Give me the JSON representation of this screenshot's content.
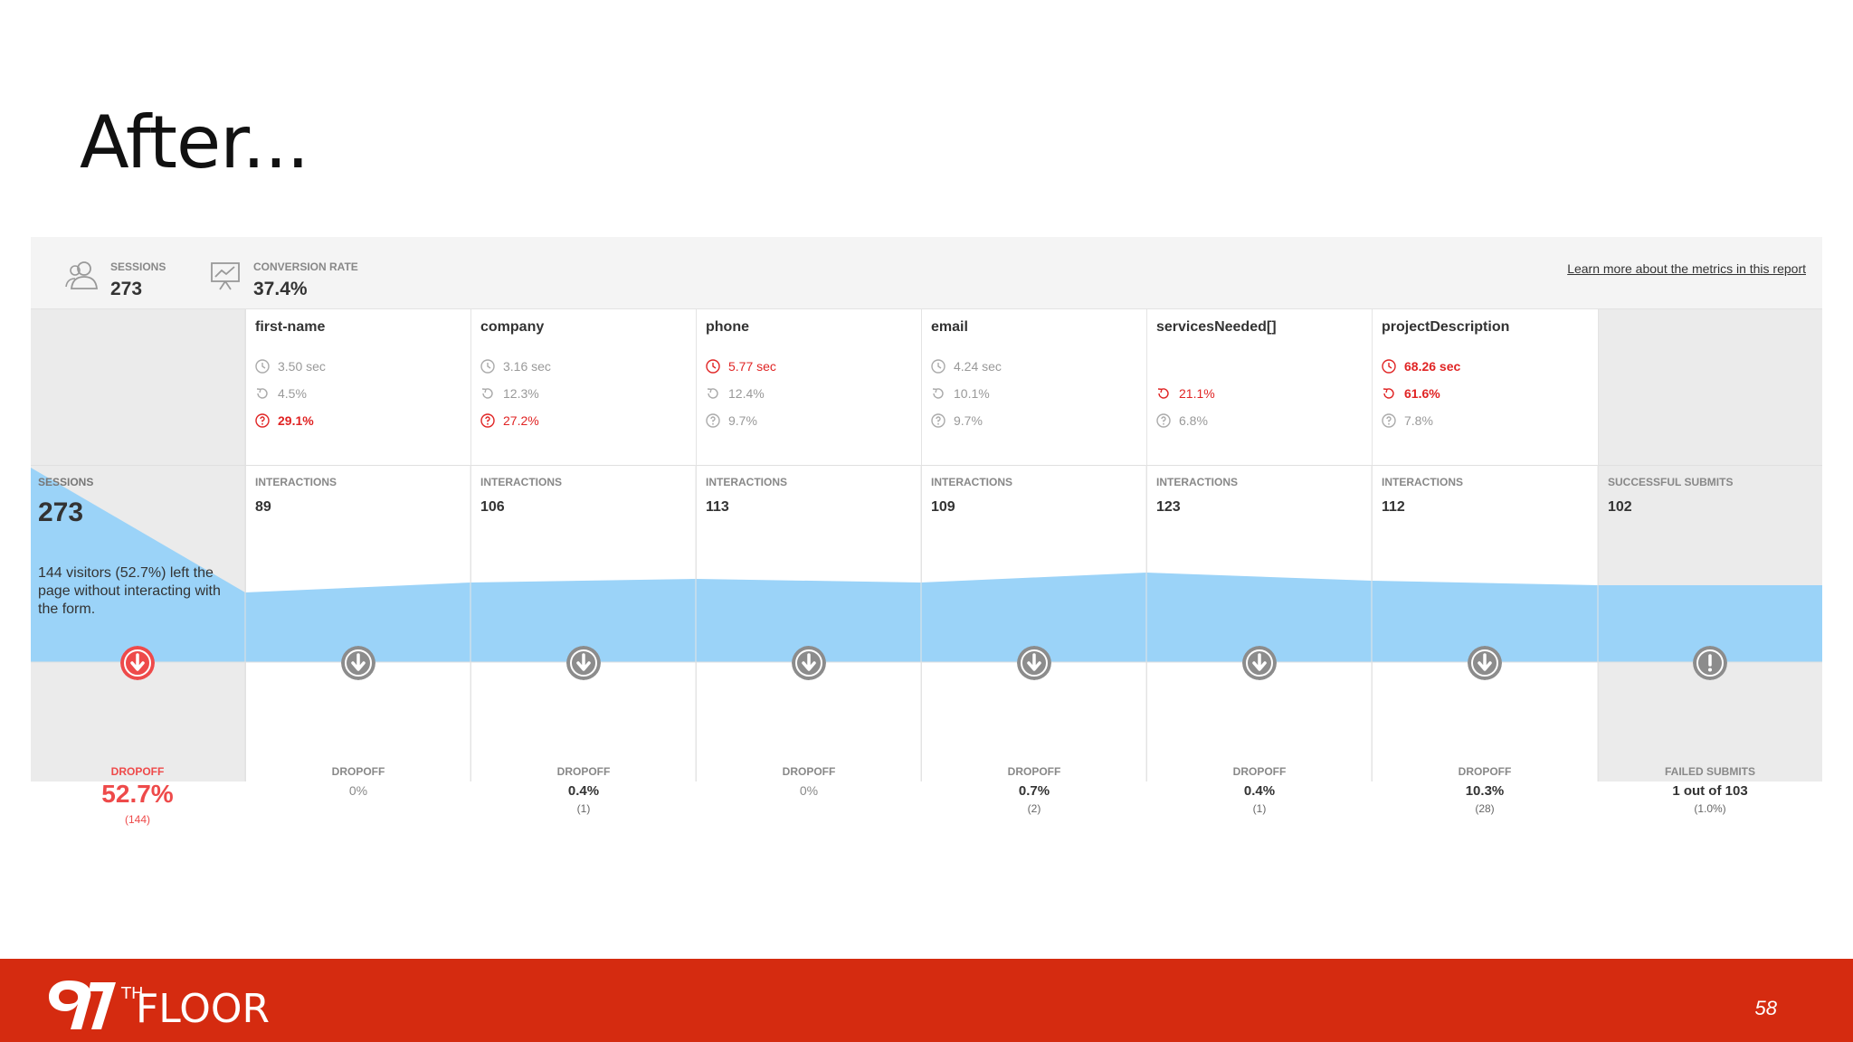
{
  "slide": {
    "title": "After...",
    "page_number": "58"
  },
  "topbar": {
    "sessions_label": "SESSIONS",
    "sessions_value": "273",
    "conversion_label": "CONVERSION RATE",
    "conversion_value": "37.4%",
    "learn_more": "Learn more about the metrics in this report"
  },
  "first_column": {
    "label": "SESSIONS",
    "value": "273",
    "note": "144 visitors (52.7%) left the page without interacting with the form.",
    "dropoff_label": "DROPOFF",
    "dropoff_value": "52.7%",
    "dropoff_count": "(144)"
  },
  "fields": [
    {
      "name": "first-name",
      "time": "3.50 sec",
      "refill": "4.5%",
      "blank": "29.1%",
      "interactions_label": "INTERACTIONS",
      "interactions": "89",
      "dropoff_label": "DROPOFF",
      "dropoff": "0%",
      "dropoff_count": ""
    },
    {
      "name": "company",
      "time": "3.16 sec",
      "refill": "12.3%",
      "blank": "27.2%",
      "interactions_label": "INTERACTIONS",
      "interactions": "106",
      "dropoff_label": "DROPOFF",
      "dropoff": "0.4%",
      "dropoff_count": "(1)"
    },
    {
      "name": "phone",
      "time": "5.77 sec",
      "refill": "12.4%",
      "blank": "9.7%",
      "interactions_label": "INTERACTIONS",
      "interactions": "113",
      "dropoff_label": "DROPOFF",
      "dropoff": "0%",
      "dropoff_count": ""
    },
    {
      "name": "email",
      "time": "4.24 sec",
      "refill": "10.1%",
      "blank": "9.7%",
      "interactions_label": "INTERACTIONS",
      "interactions": "109",
      "dropoff_label": "DROPOFF",
      "dropoff": "0.7%",
      "dropoff_count": "(2)"
    },
    {
      "name": "servicesNeeded[]",
      "time": "",
      "refill": "21.1%",
      "blank": "6.8%",
      "interactions_label": "INTERACTIONS",
      "interactions": "123",
      "dropoff_label": "DROPOFF",
      "dropoff": "0.4%",
      "dropoff_count": "(1)"
    },
    {
      "name": "projectDescription",
      "time": "68.26 sec",
      "refill": "61.6%",
      "blank": "7.8%",
      "interactions_label": "INTERACTIONS",
      "interactions": "112",
      "dropoff_label": "DROPOFF",
      "dropoff": "10.3%",
      "dropoff_count": "(28)"
    }
  ],
  "last_column": {
    "label": "SUCCESSFUL SUBMITS",
    "value": "102",
    "failed_label": "FAILED SUBMITS",
    "failed_value": "1 out of 103",
    "failed_pct": "(1.0%)"
  },
  "colors": {
    "flow": "#9bd3f8",
    "warning": "#e02424",
    "dropoff_red": "#ee4a4a",
    "icon_gray": "#8c8c8c",
    "footer": "#d52b10"
  },
  "brand": {
    "logo_number": "97",
    "logo_sup": "TH",
    "logo_word": "FLOOR"
  }
}
